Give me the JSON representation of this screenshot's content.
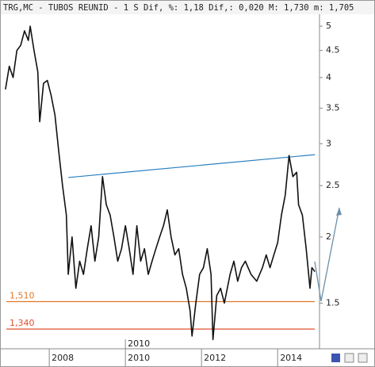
{
  "chart_data": {
    "type": "line",
    "title": "TRG,MC - TUBOS REUNID -  1 S Dif, %: 1,18 Dif,: 0,020 M: 1,730 m: 1,705",
    "x": [
      2006.85,
      2006.95,
      2007.05,
      2007.15,
      2007.25,
      2007.35,
      2007.45,
      2007.5,
      2007.6,
      2007.7,
      2007.75,
      2007.85,
      2007.95,
      2008.05,
      2008.15,
      2008.25,
      2008.35,
      2008.45,
      2008.5,
      2008.6,
      2008.7,
      2008.8,
      2008.9,
      2009.0,
      2009.1,
      2009.2,
      2009.3,
      2009.4,
      2009.5,
      2009.6,
      2009.7,
      2009.8,
      2009.9,
      2010.0,
      2010.1,
      2010.2,
      2010.3,
      2010.4,
      2010.5,
      2010.6,
      2010.7,
      2010.8,
      2010.9,
      2011.0,
      2011.1,
      2011.2,
      2011.3,
      2011.4,
      2011.5,
      2011.6,
      2011.7,
      2011.75,
      2011.85,
      2011.95,
      2012.05,
      2012.15,
      2012.25,
      2012.3,
      2012.4,
      2012.5,
      2012.6,
      2012.75,
      2012.85,
      2012.95,
      2013.05,
      2013.15,
      2013.3,
      2013.45,
      2013.6,
      2013.7,
      2013.8,
      2013.9,
      2014.0,
      2014.1,
      2014.2,
      2014.3,
      2014.4,
      2014.5,
      2014.55,
      2014.65,
      2014.75,
      2014.85,
      2014.9,
      2014.98
    ],
    "series": [
      {
        "name": "TRG,MC",
        "color": "#111111",
        "values": [
          3.8,
          4.2,
          4.0,
          4.5,
          4.6,
          4.9,
          4.7,
          5.0,
          4.5,
          4.1,
          3.3,
          3.9,
          3.95,
          3.7,
          3.4,
          2.9,
          2.5,
          2.2,
          1.7,
          2.0,
          1.6,
          1.8,
          1.7,
          1.9,
          2.1,
          1.8,
          2.0,
          2.6,
          2.3,
          2.2,
          2.0,
          1.8,
          1.9,
          2.1,
          1.9,
          1.7,
          2.1,
          1.8,
          1.9,
          1.7,
          1.8,
          1.9,
          2.0,
          2.1,
          2.25,
          2.0,
          1.85,
          1.9,
          1.7,
          1.6,
          1.45,
          1.3,
          1.5,
          1.7,
          1.75,
          1.9,
          1.7,
          1.28,
          1.55,
          1.6,
          1.5,
          1.7,
          1.8,
          1.65,
          1.75,
          1.8,
          1.7,
          1.65,
          1.75,
          1.85,
          1.75,
          1.85,
          1.95,
          2.2,
          2.4,
          2.85,
          2.6,
          2.65,
          2.3,
          2.2,
          1.9,
          1.6,
          1.75,
          1.72
        ]
      }
    ],
    "xlim": [
      2006.81,
      2015.1
    ],
    "xticks": [
      2008,
      2010,
      2012,
      2014
    ],
    "x_marker": {
      "value": 2010,
      "label": "2010"
    },
    "ylim": [
      1.23,
      5.23
    ],
    "yticks": [
      1.5,
      2,
      2.5,
      3,
      3.5,
      4,
      4.5,
      5
    ],
    "log_scale": true,
    "grid": false,
    "levels": [
      {
        "value": 1.51,
        "label": "1,510",
        "color": "#e07828"
      },
      {
        "value": 1.34,
        "label": "1,340",
        "color": "#e05030"
      }
    ],
    "trendline": {
      "x": [
        2008.5,
        2014.98
      ],
      "y": [
        2.59,
        2.86
      ],
      "color": "#2a7fc0"
    }
  }
}
